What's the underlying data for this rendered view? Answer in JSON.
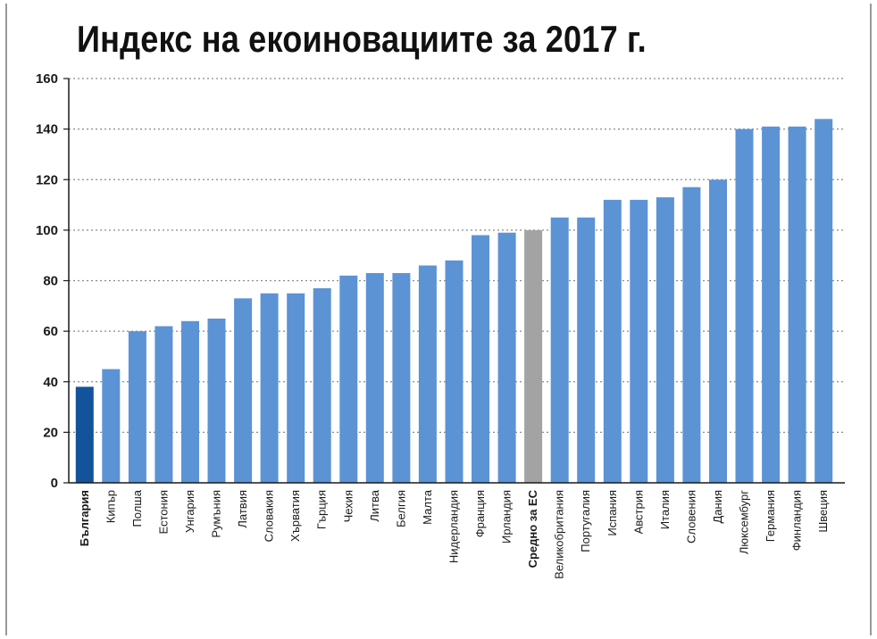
{
  "chart_data": {
    "type": "bar",
    "title": "Индекс на екоиновациите за 2017 г.",
    "xlabel": "",
    "ylabel": "",
    "ylim": [
      0,
      160
    ],
    "yticks": [
      0,
      20,
      40,
      60,
      80,
      100,
      120,
      140,
      160
    ],
    "grid": true,
    "categories": [
      "България",
      "Кипър",
      "Полша",
      "Естония",
      "Унгария",
      "Румъния",
      "Латвия",
      "Словакия",
      "Хърватия",
      "Гърция",
      "Чехия",
      "Литва",
      "Белгия",
      "Малта",
      "Нидерландия",
      "Франция",
      "Ирландия",
      "Средно за ЕС",
      "Великобритания",
      "Португалия",
      "Испания",
      "Австрия",
      "Италия",
      "Словения",
      "Дания",
      "Люксембург",
      "Германия",
      "Финландия",
      "Швеция"
    ],
    "values": [
      38,
      45,
      60,
      62,
      64,
      65,
      73,
      75,
      75,
      77,
      82,
      83,
      83,
      86,
      88,
      98,
      99,
      100,
      105,
      105,
      112,
      112,
      113,
      117,
      120,
      140,
      141,
      141,
      144
    ],
    "highlight": {
      "България": "#12539b",
      "Средно за ЕС": "#a3a3a3"
    },
    "bold_labels": [
      "България",
      "Средно за ЕС"
    ],
    "bar_color": "#5b93d5",
    "grid_color": "#8a8a8a",
    "text_color": "#1a1a1a"
  }
}
